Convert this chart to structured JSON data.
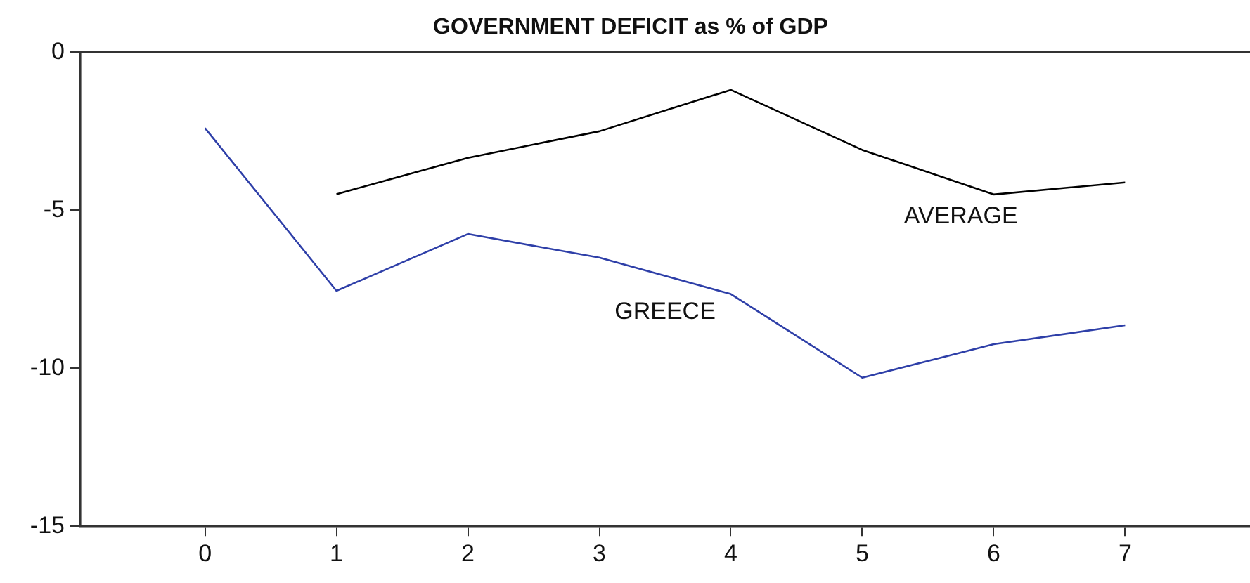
{
  "chart_data": {
    "type": "line",
    "title": "GOVERNMENT DEFICIT as % of GDP",
    "x": [
      0,
      1,
      2,
      3,
      4,
      5,
      6,
      7
    ],
    "series": [
      {
        "name": "AVERAGE",
        "color": "#000000",
        "values": [
          null,
          -4.49,
          -3.34,
          -2.5,
          -1.19,
          -3.09,
          -4.5,
          -4.12
        ]
      },
      {
        "name": "GREECE",
        "color": "#2e3fa8",
        "values": [
          -2.4,
          -7.55,
          -5.75,
          -6.5,
          -7.65,
          -10.3,
          -9.24,
          -8.64
        ]
      }
    ],
    "xlim": [
      -0.95,
      7.95
    ],
    "xticks": [
      0,
      1,
      2,
      3,
      4,
      5,
      6,
      7
    ],
    "ylim": [
      -15,
      0
    ],
    "yticks": [
      -15,
      -10,
      -5,
      0
    ],
    "grid": false,
    "legend": false,
    "marker": "none",
    "line_style": "solid"
  }
}
